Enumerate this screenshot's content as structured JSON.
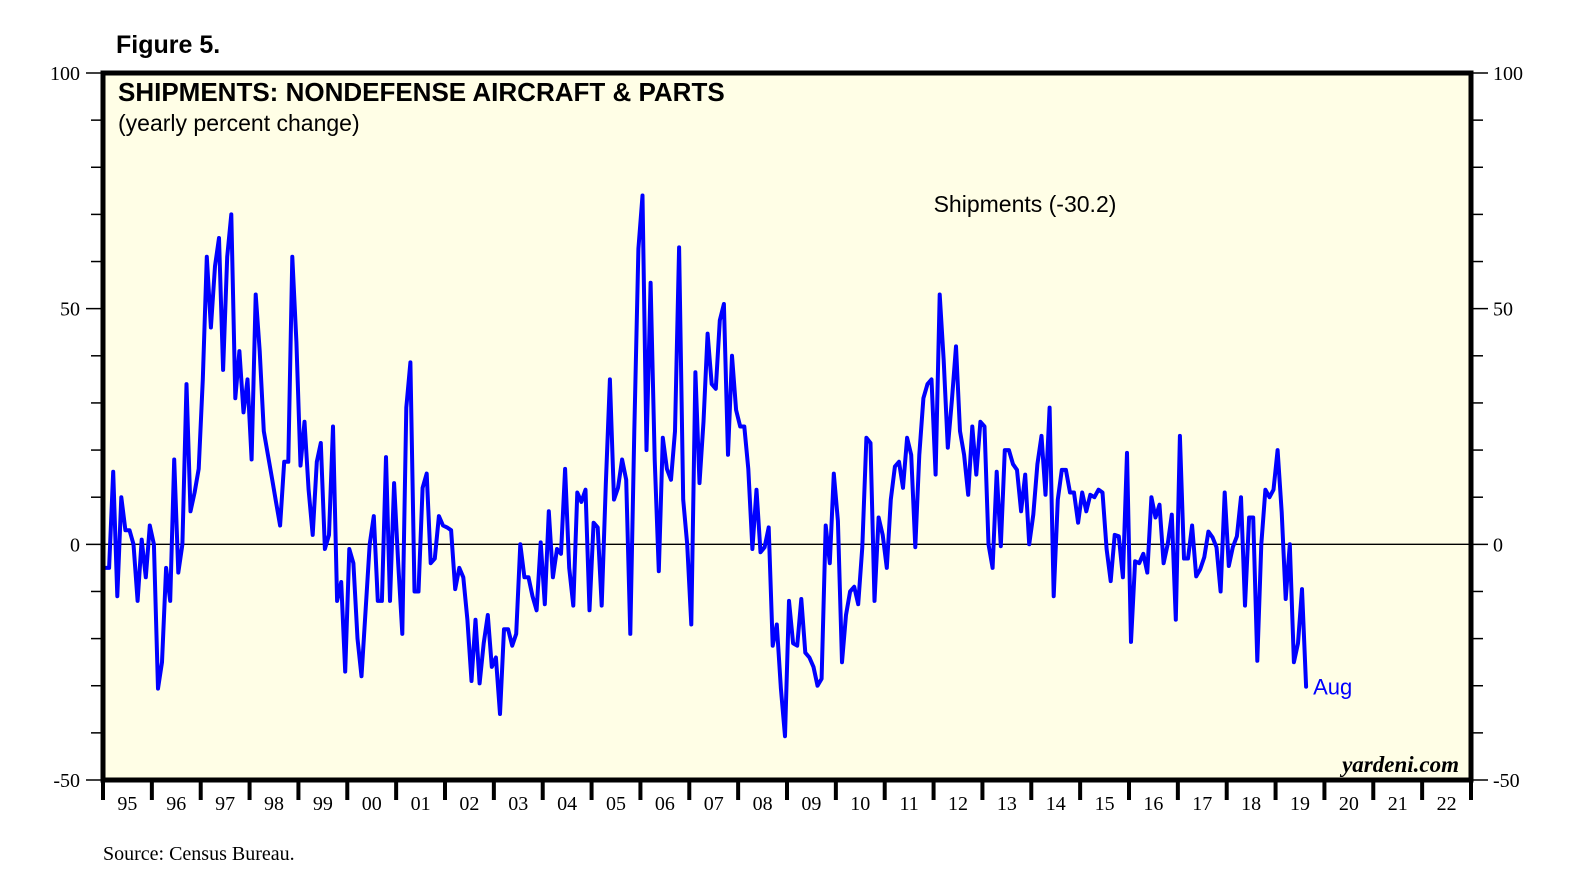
{
  "figure_label": "Figure 5.",
  "source": "Source: Census Bureau.",
  "watermark": "yardeni.com",
  "colors": {
    "line": "#0000ff",
    "plot_background": "#fffee6",
    "frame": "#000000"
  },
  "chart_data": {
    "type": "line",
    "title": "SHIPMENTS: NONDEFENSE AIRCRAFT & PARTS",
    "subtitle": "(yearly percent change)",
    "xlabel": "",
    "ylabel": "",
    "ylim": [
      -50,
      100
    ],
    "xlim": [
      "1995-01",
      "2022-12"
    ],
    "y_ticks": [
      "100",
      "50",
      "0",
      "-50"
    ],
    "y_tick_values": [
      100,
      50,
      0,
      -50
    ],
    "x_tick_labels": [
      "95",
      "96",
      "97",
      "98",
      "99",
      "00",
      "01",
      "02",
      "03",
      "04",
      "05",
      "06",
      "07",
      "08",
      "09",
      "10",
      "11",
      "12",
      "13",
      "14",
      "15",
      "16",
      "17",
      "18",
      "19",
      "20",
      "21",
      "22"
    ],
    "reference_line": 0,
    "grid": false,
    "series": [
      {
        "name": "Shipments (-30.2)",
        "start": "1995-01",
        "frequency": "monthly",
        "end_label": "Aug",
        "values": [
          -5,
          -5,
          15.4,
          -11,
          10,
          3,
          3,
          0,
          -12,
          1,
          -7,
          4,
          0,
          -30.6,
          -25,
          -5,
          -12,
          18,
          -6,
          0,
          34,
          7,
          11,
          16,
          35,
          61,
          46,
          59,
          65,
          37,
          61,
          70,
          31,
          41,
          28,
          35,
          18,
          53,
          41,
          24,
          19,
          14,
          9,
          4,
          17.5,
          17.5,
          61,
          43,
          16.7,
          26,
          11.6,
          2,
          17.5,
          21.5,
          -1,
          2,
          25,
          -12,
          -8,
          -27,
          -1,
          -4,
          -20,
          -28,
          -14,
          0,
          6,
          -12,
          -12,
          18.5,
          -12,
          13,
          -4,
          -19,
          29,
          38.6,
          -10,
          -10,
          12,
          15,
          -4,
          -3,
          6,
          4,
          3.6,
          3,
          -9.5,
          -5,
          -7,
          -16,
          -29,
          -16,
          -29.5,
          -21,
          -15,
          -26,
          -24,
          -36,
          -18,
          -18,
          -21.5,
          -19,
          0,
          -7,
          -7,
          -11,
          -14,
          0.4,
          -12.7,
          7,
          -7,
          -1,
          -2,
          16,
          -5,
          -13,
          11,
          9,
          11.6,
          -14,
          4.6,
          3.6,
          -13,
          12.7,
          35,
          9.5,
          12,
          18,
          13.7,
          -19,
          24,
          62.7,
          74,
          20,
          55.5,
          18,
          -5.7,
          22.6,
          16,
          13.7,
          24,
          63,
          9.5,
          0,
          -17,
          36.5,
          13,
          26,
          44.7,
          34,
          33,
          47.5,
          51,
          19,
          40,
          28.5,
          25,
          25,
          16,
          -1,
          11.6,
          -1.7,
          -0.6,
          3.6,
          -21.5,
          -17,
          -30.6,
          -40.7,
          -12,
          -21,
          -21.5,
          -11.6,
          -23,
          -24,
          -26,
          -30,
          -28.5,
          4,
          -4,
          15,
          5,
          -25,
          -15,
          -10,
          -9,
          -12.7,
          -0.6,
          22.6,
          21.5,
          -12,
          5.7,
          2,
          -5,
          9.5,
          16.5,
          17.5,
          12,
          22.6,
          19,
          -0.6,
          19,
          31,
          34,
          35,
          14.8,
          53,
          39,
          20.5,
          30.6,
          42,
          24,
          19,
          10.5,
          25,
          14.8,
          26,
          25,
          0,
          -5,
          15.4,
          -0.4,
          20,
          20,
          17,
          15.8,
          7,
          14.8,
          0,
          6.3,
          17,
          23,
          10.5,
          29,
          -11,
          9.5,
          15.8,
          15.8,
          11,
          11,
          4.6,
          11,
          7,
          10.5,
          10,
          11.6,
          11,
          -1,
          -7.8,
          2,
          1.7,
          -7,
          19.4,
          -20.7,
          -3.6,
          -4,
          -2,
          -6,
          10,
          5.7,
          8.4,
          -4,
          0,
          6.3,
          -16,
          23,
          -3,
          -3,
          4,
          -6.8,
          -5.3,
          -2.7,
          2.7,
          1.5,
          -0.6,
          -10,
          11,
          -4.6,
          -0.6,
          1.7,
          10,
          -13,
          5.7,
          5.7,
          -24.7,
          0,
          11.6,
          10,
          11.6,
          20,
          6.8,
          -11.6,
          0,
          -25,
          -21,
          -9.5,
          -30.2
        ]
      }
    ]
  }
}
